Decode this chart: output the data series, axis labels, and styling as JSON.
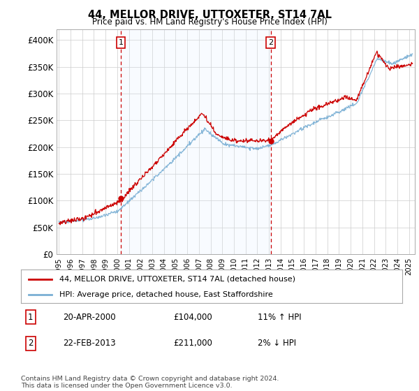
{
  "title": "44, MELLOR DRIVE, UTTOXETER, ST14 7AL",
  "subtitle": "Price paid vs. HM Land Registry's House Price Index (HPI)",
  "legend_line1": "44, MELLOR DRIVE, UTTOXETER, ST14 7AL (detached house)",
  "legend_line2": "HPI: Average price, detached house, East Staffordshire",
  "annotation1_label": "1",
  "annotation1_date": "20-APR-2000",
  "annotation1_price": "£104,000",
  "annotation1_hpi": "11% ↑ HPI",
  "annotation2_label": "2",
  "annotation2_date": "22-FEB-2013",
  "annotation2_price": "£211,000",
  "annotation2_hpi": "2% ↓ HPI",
  "footer": "Contains HM Land Registry data © Crown copyright and database right 2024.\nThis data is licensed under the Open Government Licence v3.0.",
  "sale1_x": 2000.3,
  "sale1_y": 104000,
  "sale2_x": 2013.15,
  "sale2_y": 211000,
  "vline1_x": 2000.3,
  "vline2_x": 2013.15,
  "ylim": [
    0,
    420000
  ],
  "xlim": [
    1994.8,
    2025.5
  ],
  "red_color": "#cc0000",
  "blue_color": "#7aafd4",
  "shade_color": "#ddeeff",
  "vline_color": "#cc0000",
  "grid_color": "#cccccc",
  "yticks": [
    0,
    50000,
    100000,
    150000,
    200000,
    250000,
    300000,
    350000,
    400000
  ]
}
